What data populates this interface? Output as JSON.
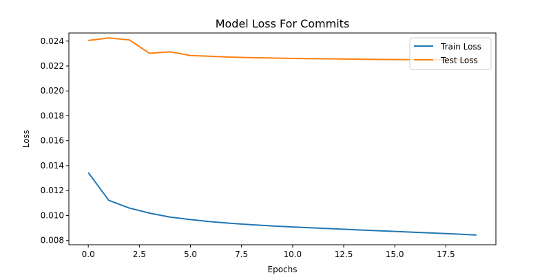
{
  "chart_data": {
    "type": "line",
    "title": "Model Loss For Commits",
    "xlabel": "Epochs",
    "ylabel": "Loss",
    "xlim": [
      -0.95,
      19.95
    ],
    "ylim": [
      0.00765,
      0.02465
    ],
    "xticks": [
      0.0,
      2.5,
      5.0,
      7.5,
      10.0,
      12.5,
      15.0,
      17.5
    ],
    "xtick_labels": [
      "0.0",
      "2.5",
      "5.0",
      "7.5",
      "10.0",
      "12.5",
      "15.0",
      "17.5"
    ],
    "yticks": [
      0.008,
      0.01,
      0.012,
      0.014,
      0.016,
      0.018,
      0.02,
      0.022,
      0.024
    ],
    "ytick_labels": [
      "0.008",
      "0.010",
      "0.012",
      "0.014",
      "0.016",
      "0.018",
      "0.020",
      "0.022",
      "0.024"
    ],
    "grid": false,
    "legend_position": "top-right",
    "x": [
      0,
      1,
      2,
      3,
      4,
      5,
      6,
      7,
      8,
      9,
      10,
      11,
      12,
      13,
      14,
      15,
      16,
      17,
      18,
      19
    ],
    "series": [
      {
        "name": "Train Loss",
        "color": "#1f77b4",
        "values": [
          0.01345,
          0.01122,
          0.0106,
          0.01019,
          0.00987,
          0.00967,
          0.0095,
          0.00937,
          0.00926,
          0.00916,
          0.00908,
          0.009,
          0.00893,
          0.00886,
          0.00879,
          0.00872,
          0.00865,
          0.00858,
          0.00851,
          0.00843
        ]
      },
      {
        "name": "Test Loss",
        "color": "#ff7f0e",
        "values": [
          0.02405,
          0.02425,
          0.0241,
          0.02302,
          0.02314,
          0.02284,
          0.02278,
          0.02271,
          0.02267,
          0.02264,
          0.02261,
          0.02259,
          0.02257,
          0.02255,
          0.02253,
          0.02252,
          0.02251,
          0.02251,
          0.0225,
          0.0225
        ]
      }
    ]
  }
}
